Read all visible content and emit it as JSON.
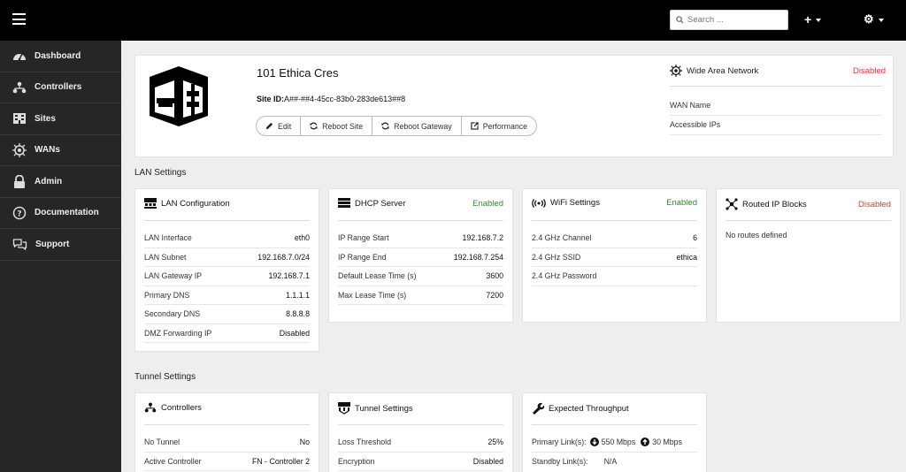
{
  "header": {
    "search_placeholder": "Search ...",
    "add_label": "+",
    "settings_label": "⚙"
  },
  "sidebar": {
    "items": [
      {
        "label": "Dashboard",
        "icon": "dashboard-icon"
      },
      {
        "label": "Controllers",
        "icon": "sitemap-icon"
      },
      {
        "label": "Sites",
        "icon": "building-icon"
      },
      {
        "label": "WANs",
        "icon": "globe-icon"
      },
      {
        "label": "Admin",
        "icon": "lock-icon"
      },
      {
        "label": "Documentation",
        "icon": "question-icon"
      },
      {
        "label": "Support",
        "icon": "chat-icon"
      }
    ]
  },
  "site": {
    "name": "101 Ethica Cres",
    "id_label": "Site ID:",
    "id_value": "A##-##4-45cc-83b0-283de613##8",
    "actions": {
      "edit": "Edit",
      "reboot_site": "Reboot Site",
      "reboot_gateway": "Reboot Gateway",
      "performance": "Performance"
    }
  },
  "wan": {
    "title": "Wide Area Network",
    "status": "Disabled",
    "rows": [
      "WAN Name",
      "Accessible IPs"
    ]
  },
  "sections": {
    "lan": "LAN Settings",
    "tunnel": "Tunnel Settings"
  },
  "lan_config": {
    "title": "LAN Configuration",
    "rows": [
      {
        "label": "LAN Interface",
        "value": "eth0"
      },
      {
        "label": "LAN Subnet",
        "value": "192.168.7.0/24"
      },
      {
        "label": "LAN Gateway IP",
        "value": "192.168.7.1"
      },
      {
        "label": "Primary DNS",
        "value": "1.1.1.1"
      },
      {
        "label": "Secondary DNS",
        "value": "8.8.8.8"
      },
      {
        "label": "DMZ Forwarding IP",
        "value": "Disabled"
      }
    ]
  },
  "dhcp": {
    "title": "DHCP Server",
    "status": "Enabled",
    "rows": [
      {
        "label": "IP Range Start",
        "value": "192.168.7.2"
      },
      {
        "label": "IP Range End",
        "value": "192.168.7.254"
      },
      {
        "label": "Default Lease Time (s)",
        "value": "3600"
      },
      {
        "label": "Max Lease Time (s)",
        "value": "7200"
      }
    ]
  },
  "wifi": {
    "title": "WiFi Settings",
    "status": "Enabled",
    "rows": [
      {
        "label": "2.4 GHz Channel",
        "value": "6"
      },
      {
        "label": "2.4 GHz SSID",
        "value": "ethica"
      },
      {
        "label": "2.4 GHz Password",
        "value": ""
      }
    ]
  },
  "routed": {
    "title": "Routed IP Blocks",
    "status": "Disabled",
    "empty": "No routes defined"
  },
  "controllers": {
    "title": "Controllers",
    "rows": [
      {
        "label": "No Tunnel",
        "value": "No"
      },
      {
        "label": "Active Controller",
        "value": "FN - Controller 2"
      }
    ]
  },
  "tunnel": {
    "title": "Tunnel Settings",
    "rows": [
      {
        "label": "Loss Threshold",
        "value": "25%"
      },
      {
        "label": "Encryption",
        "value": "Disabled"
      }
    ]
  },
  "throughput": {
    "title": "Expected Throughput",
    "primary_label": "Primary Link(s):",
    "primary_down": "550 Mbps",
    "primary_up": "30 Mbps",
    "standby_label": "Standby Link(s):",
    "standby_value": "N/A"
  },
  "colors": {
    "enabled": "#2e8b2e",
    "disabled": "#e53935",
    "topbar": "#000000",
    "sidebar": "#262626"
  }
}
